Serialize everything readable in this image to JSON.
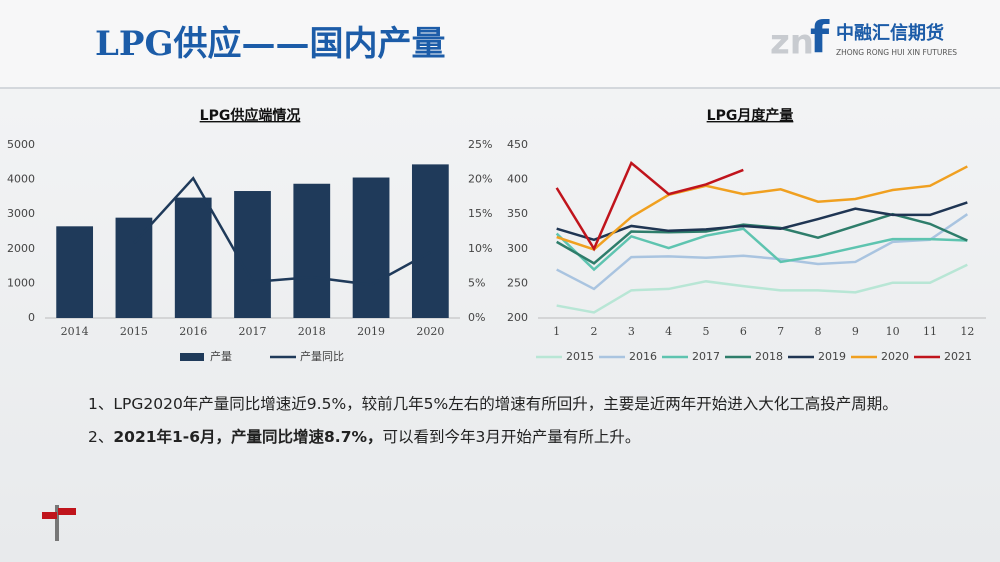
{
  "header": {
    "title": "LPG供应——国内产量",
    "logo_letters": [
      "zn",
      "f"
    ],
    "logo_cn": "中融汇信期货",
    "logo_en": "ZHONG RONG HUI XIN FUTURES"
  },
  "chart_data": [
    {
      "type": "bar",
      "title": "LPG供应端情况",
      "categories": [
        "2014",
        "2015",
        "2016",
        "2017",
        "2018",
        "2019",
        "2020"
      ],
      "series": [
        {
          "name": "产量",
          "color": "#1f3a5a",
          "values": [
            2650,
            2900,
            3480,
            3670,
            3880,
            4060,
            4440
          ]
        },
        {
          "name": "产量同比",
          "color": "#1f3a5a",
          "axis": "y2",
          "type": "line",
          "values": [
            null,
            10.8,
            20.2,
            5.2,
            5.9,
            4.8,
            9.5
          ]
        }
      ],
      "ylim": [
        0,
        5000
      ],
      "yticks": [
        0,
        1000,
        2000,
        3000,
        4000,
        5000
      ],
      "y2lim": [
        0,
        25
      ],
      "y2ticks": [
        {
          "value": 0,
          "label": "0%"
        },
        {
          "value": 5,
          "label": "5%"
        },
        {
          "value": 10,
          "label": "10%"
        },
        {
          "value": 15,
          "label": "15%"
        },
        {
          "value": 20,
          "label": "20%"
        },
        {
          "value": 25,
          "label": "25%"
        }
      ],
      "legend": "bottom"
    },
    {
      "type": "line",
      "title": "LPG月度产量",
      "categories": [
        "1",
        "2",
        "3",
        "4",
        "5",
        "6",
        "7",
        "8",
        "9",
        "10",
        "11",
        "12"
      ],
      "series": [
        {
          "name": "2015",
          "color": "#b8e6d5",
          "values": [
            218,
            208,
            240,
            242,
            253,
            246,
            240,
            240,
            237,
            251,
            251,
            277
          ]
        },
        {
          "name": "2016",
          "color": "#a9c4e0",
          "values": [
            270,
            242,
            288,
            289,
            287,
            290,
            285,
            278,
            281,
            310,
            313,
            350
          ]
        },
        {
          "name": "2017",
          "color": "#5ec4b0",
          "values": [
            322,
            270,
            318,
            301,
            319,
            329,
            281,
            290,
            302,
            314,
            314,
            312
          ]
        },
        {
          "name": "2018",
          "color": "#2e7d6b",
          "values": [
            310,
            279,
            325,
            324,
            325,
            335,
            330,
            316,
            333,
            350,
            336,
            312
          ]
        },
        {
          "name": "2019",
          "color": "#1f3553",
          "values": [
            329,
            313,
            333,
            326,
            328,
            333,
            329,
            343,
            358,
            349,
            349,
            367
          ]
        },
        {
          "name": "2020",
          "color": "#f0a020",
          "values": [
            317,
            299,
            346,
            378,
            391,
            379,
            386,
            368,
            372,
            385,
            391,
            419
          ]
        },
        {
          "name": "2021",
          "color": "#c0141c",
          "values": [
            388,
            300,
            424,
            379,
            393,
            414,
            null,
            null,
            null,
            null,
            null,
            null
          ]
        }
      ],
      "ylim": [
        200,
        450
      ],
      "yticks": [
        200,
        250,
        300,
        350,
        400,
        450
      ],
      "legend": "bottom"
    }
  ],
  "notes": [
    {
      "parts": [
        {
          "text": "1、LPG2020年产量同比增速近9.5%，较前几年5%左右的增速有所回升，主要是近两年开始进入大化工高投产周期。",
          "bold": false
        }
      ]
    },
    {
      "parts": [
        {
          "text": "2、",
          "bold": false
        },
        {
          "text": "2021年1-6月，产量同比增速8.7%，",
          "bold": true
        },
        {
          "text": "可以看到今年3月开始产量有所上升。",
          "bold": false
        }
      ]
    }
  ]
}
